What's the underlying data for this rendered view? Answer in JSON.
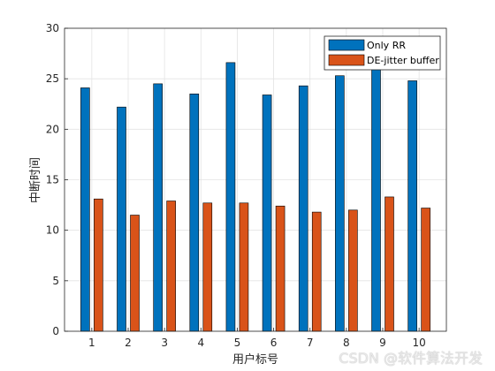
{
  "chart_data": {
    "type": "bar",
    "categories": [
      "1",
      "2",
      "3",
      "4",
      "5",
      "6",
      "7",
      "8",
      "9",
      "10"
    ],
    "series": [
      {
        "name": "Only RR",
        "color": "#0072BD",
        "values": [
          24.1,
          22.2,
          24.5,
          23.5,
          26.6,
          23.4,
          24.3,
          25.3,
          26.0,
          24.8
        ]
      },
      {
        "name": "DE-jitter buffer",
        "color": "#D95319",
        "values": [
          13.1,
          11.5,
          12.9,
          12.7,
          12.7,
          12.4,
          11.8,
          12.0,
          13.3,
          12.2
        ]
      }
    ],
    "xlabel": "用户标号",
    "ylabel": "中断时间",
    "ylim": [
      0,
      30
    ],
    "yticks": [
      "0",
      "5",
      "10",
      "15",
      "20",
      "25",
      "30"
    ],
    "grid": true,
    "legend_position": "top-right"
  },
  "watermark": "CSDN @软件算法开发"
}
